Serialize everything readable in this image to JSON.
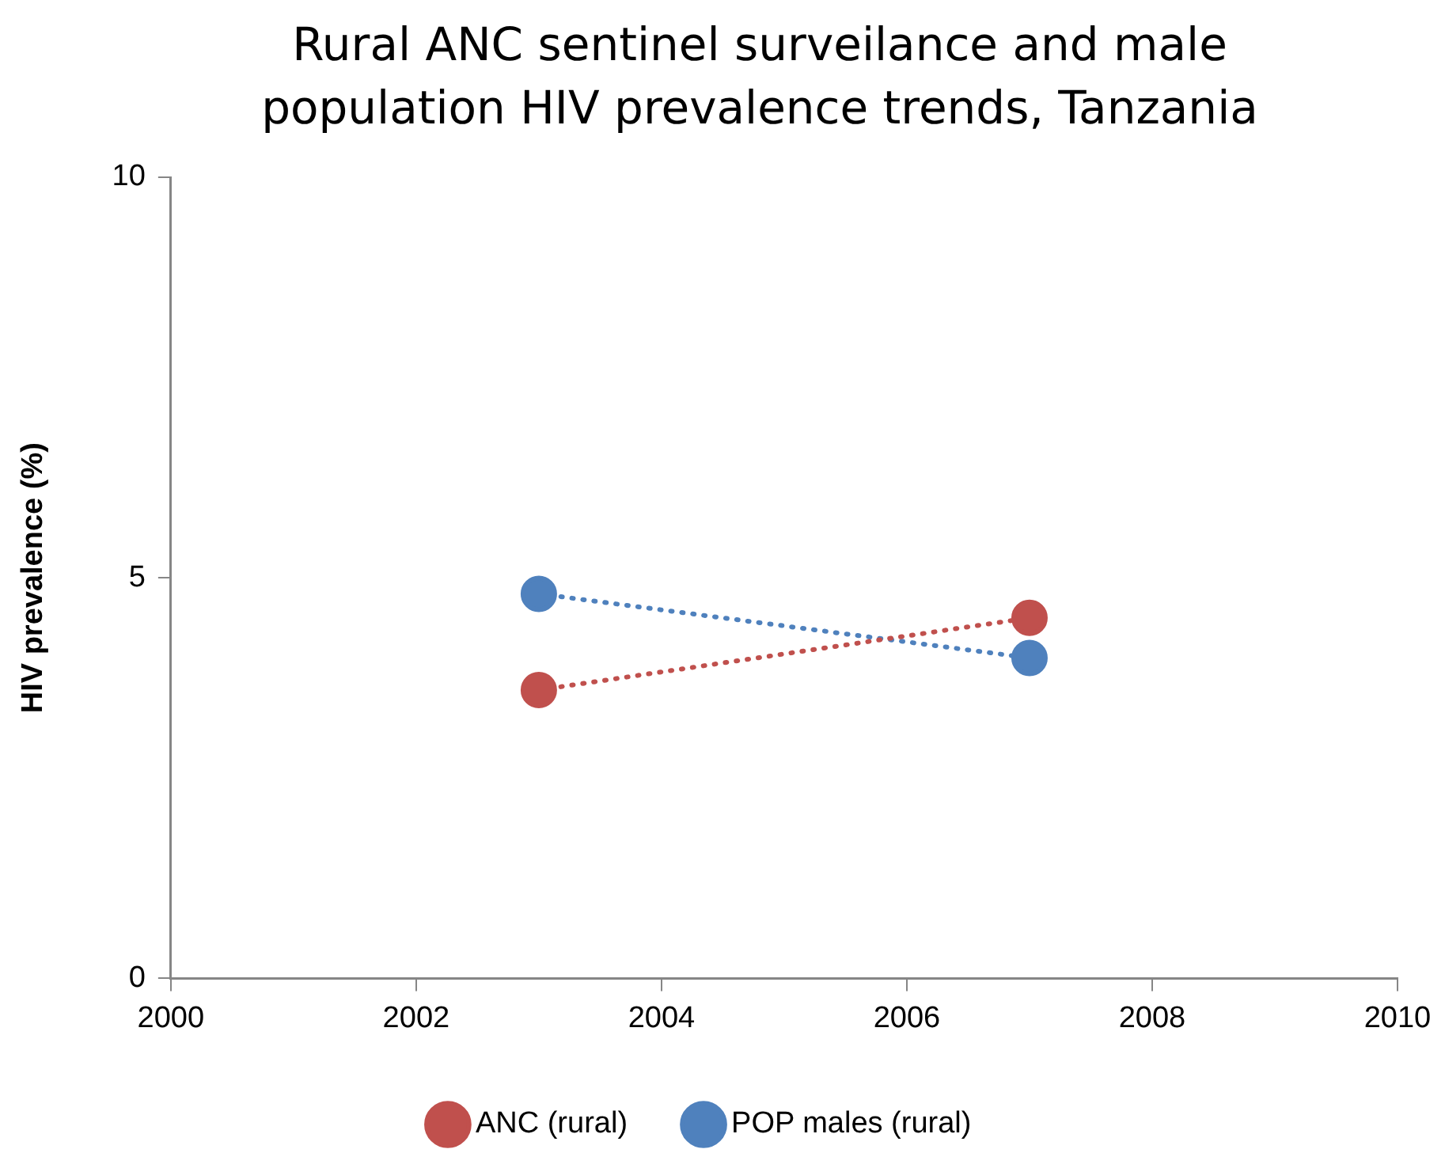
{
  "chart_data": {
    "type": "line",
    "title": "Rural ANC sentinel surveilance and male population HIV prevalence trends, Tanzania",
    "ylabel": "HIV prevalence (%)",
    "x": [
      2003,
      2007
    ],
    "series": [
      {
        "name": "ANC (rural)",
        "color": "#c0504d",
        "values": [
          3.6,
          4.5
        ]
      },
      {
        "name": "POP males (rural)",
        "color": "#4f81bd",
        "values": [
          4.8,
          4.0
        ]
      }
    ],
    "xlim": [
      2000,
      2010
    ],
    "xticks": [
      2000,
      2002,
      2004,
      2006,
      2008,
      2010
    ],
    "ylim": [
      0,
      10
    ],
    "yticks": [
      0,
      5,
      10
    ],
    "grid": false,
    "legend": "bottom",
    "marker": "circle",
    "line_style": "dotted"
  }
}
